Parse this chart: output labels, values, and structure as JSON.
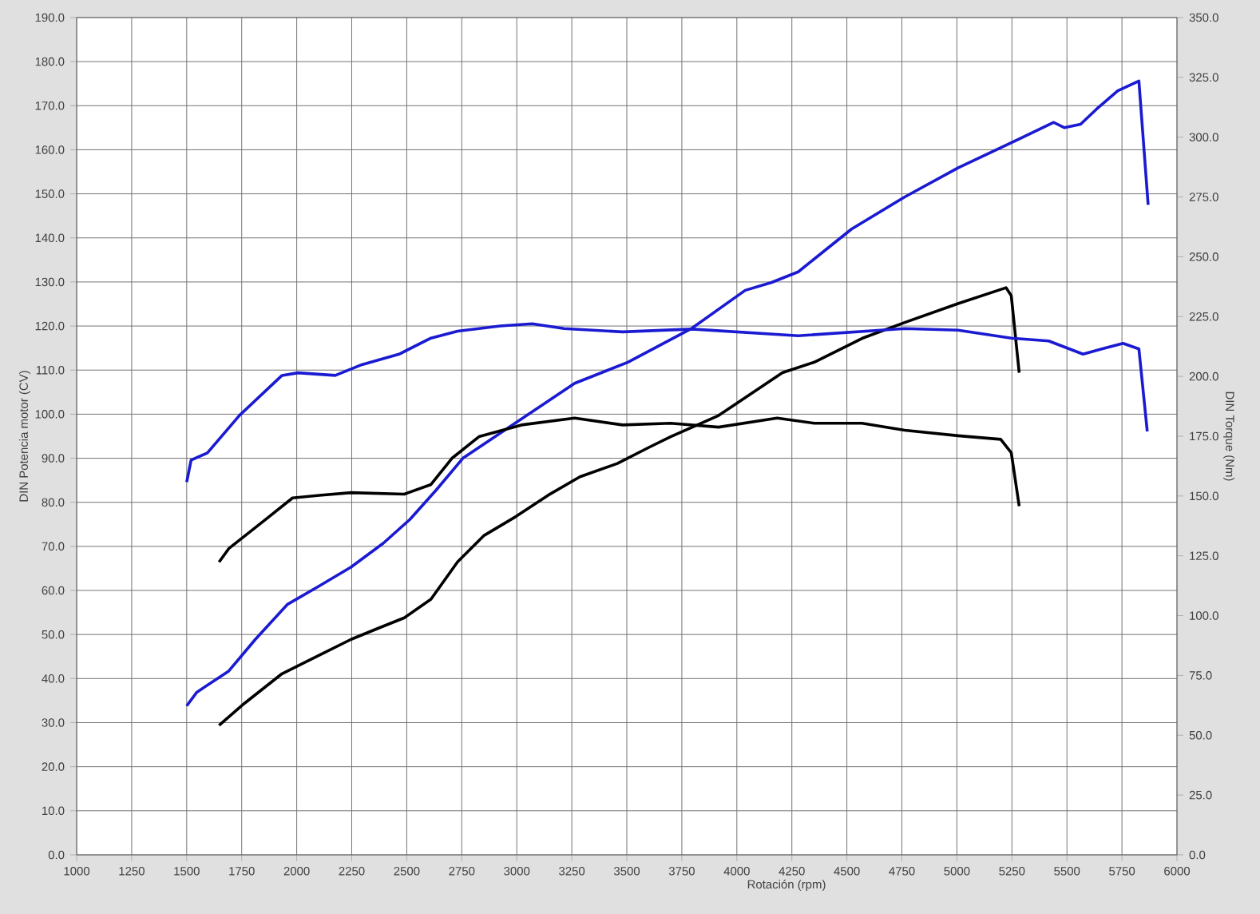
{
  "chart_data": {
    "type": "line",
    "xlabel": "Rotación (rpm)",
    "ylabel": "DIN Potencia motor (CV)",
    "y2label": "DIN Torque (Nm)",
    "xlim": [
      1000,
      6000
    ],
    "xticks": [
      1000,
      1250,
      1500,
      1750,
      2000,
      2250,
      2500,
      2750,
      3000,
      3250,
      3500,
      3750,
      4000,
      4250,
      4500,
      4750,
      5000,
      5250,
      5500,
      5750,
      6000
    ],
    "ylim": [
      0,
      190
    ],
    "yticks": [
      {
        "value": 0,
        "label": "0.0"
      },
      {
        "value": 10,
        "label": "10.0"
      },
      {
        "value": 20,
        "label": "20.0"
      },
      {
        "value": 30,
        "label": "30.0"
      },
      {
        "value": 40,
        "label": "40.0"
      },
      {
        "value": 50,
        "label": "50.0"
      },
      {
        "value": 60,
        "label": "60.0"
      },
      {
        "value": 70,
        "label": "70.0"
      },
      {
        "value": 80,
        "label": "80.0"
      },
      {
        "value": 90,
        "label": "90.0"
      },
      {
        "value": 100,
        "label": "100.0"
      },
      {
        "value": 110,
        "label": "110.0"
      },
      {
        "value": 120,
        "label": "120.0"
      },
      {
        "value": 130,
        "label": "130.0"
      },
      {
        "value": 140,
        "label": "140.0"
      },
      {
        "value": 150,
        "label": "150.0"
      },
      {
        "value": 160,
        "label": "160.0"
      },
      {
        "value": 170,
        "label": "170.0"
      },
      {
        "value": 180,
        "label": "180.0"
      },
      {
        "value": 190,
        "label": "190.0"
      }
    ],
    "y2lim": [
      0,
      350
    ],
    "y2ticks": [
      {
        "value": 0,
        "label": "0.0"
      },
      {
        "value": 25,
        "label": "25.0"
      },
      {
        "value": 50,
        "label": "50.0"
      },
      {
        "value": 75,
        "label": "75.0"
      },
      {
        "value": 100,
        "label": "100.0"
      },
      {
        "value": 125,
        "label": "125.0"
      },
      {
        "value": 150,
        "label": "150.0"
      },
      {
        "value": 175,
        "label": "175.0"
      },
      {
        "value": 200,
        "label": "200.0"
      },
      {
        "value": 225,
        "label": "225.0"
      },
      {
        "value": 250,
        "label": "250.0"
      },
      {
        "value": 275,
        "label": "275.0"
      },
      {
        "value": 300,
        "label": "300.0"
      },
      {
        "value": 325,
        "label": "325.0"
      },
      {
        "value": 350,
        "label": "350.0"
      }
    ],
    "grid": true,
    "series": [
      {
        "color": "#1a1ad2",
        "axis": "y",
        "x": [
          1500,
          1546,
          1691,
          1812,
          1957,
          2102,
          2247,
          2393,
          2514,
          2634,
          2755,
          2973,
          3263,
          3505,
          3796,
          4038,
          4158,
          4279,
          4521,
          4763,
          5005,
          5247,
          5440,
          5489,
          5562,
          5634,
          5731,
          5827,
          5869
        ],
        "values": [
          33.8,
          36.9,
          41.7,
          48.9,
          56.8,
          61,
          65.3,
          70.7,
          76.1,
          82.8,
          90,
          97.3,
          107,
          111.8,
          119.5,
          128.1,
          129.9,
          132.3,
          142,
          149.3,
          155.9,
          161.6,
          166.2,
          165,
          165.8,
          169.2,
          173.4,
          175.6,
          147.5
        ]
      },
      {
        "color": "#1a1ad2",
        "axis": "y2",
        "x": [
          1500,
          1520,
          1594,
          1740,
          1933,
          2006,
          2175,
          2296,
          2465,
          2610,
          2731,
          2925,
          3070,
          3215,
          3481,
          3796,
          4279,
          4763,
          5005,
          5247,
          5417,
          5573,
          5658,
          5755,
          5827,
          5865
        ],
        "values": [
          155.8,
          165,
          168,
          183.7,
          200.4,
          201.5,
          200.4,
          204.9,
          209.3,
          216,
          218.9,
          221.1,
          222,
          220,
          218.6,
          219.8,
          217,
          220,
          219.3,
          216,
          214.8,
          209.3,
          211.5,
          213.8,
          211.5,
          177
        ]
      },
      {
        "color": "#000000",
        "axis": "y",
        "x": [
          1647,
          1763,
          1933,
          2102,
          2247,
          2369,
          2489,
          2610,
          2731,
          2852,
          2997,
          3142,
          3287,
          3457,
          3602,
          3699,
          3917,
          4207,
          4352,
          4569,
          4763,
          5005,
          5223,
          5247,
          5283
        ],
        "values": [
          29.4,
          34.4,
          41.1,
          45.3,
          48.9,
          51.4,
          53.8,
          58,
          66.5,
          72.5,
          76.8,
          81.6,
          85.8,
          88.8,
          92.5,
          94.9,
          99.7,
          109.4,
          111.8,
          117.2,
          120.8,
          125.1,
          128.7,
          126.9,
          109.4
        ]
      },
      {
        "color": "#000000",
        "axis": "y2",
        "x": [
          1647,
          1691,
          1860,
          1981,
          2102,
          2247,
          2489,
          2610,
          2707,
          2828,
          3021,
          3263,
          3481,
          3699,
          3917,
          4183,
          4352,
          4569,
          4763,
          5005,
          5199,
          5247,
          5283
        ],
        "values": [
          122.4,
          128,
          140.3,
          149.2,
          150.3,
          151.4,
          150.8,
          154.8,
          165.9,
          174.8,
          179.7,
          182.6,
          179.7,
          180.4,
          178.8,
          182.6,
          180.4,
          180.4,
          177.5,
          175.2,
          173.7,
          168.1,
          145.8
        ]
      }
    ]
  }
}
